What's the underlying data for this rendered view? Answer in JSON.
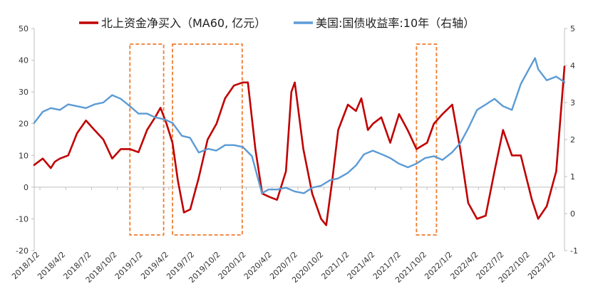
{
  "chart_data": {
    "type": "line",
    "title": "",
    "legend": {
      "placement": "top",
      "entries": [
        "北上资金净买入（MA60, 亿元）",
        "美国:国债收益率:10年（右轴）"
      ]
    },
    "colors": {
      "north": "#C00000",
      "us10y": "#5B9BD5",
      "highlight": "#ED7D31",
      "axis": "#BFBFBF"
    },
    "x_ticks": [
      "2018/1/2",
      "2018/4/2",
      "2018/7/2",
      "2018/10/2",
      "2019/1/2",
      "2019/4/2",
      "2019/7/2",
      "2019/10/2",
      "2020/1/2",
      "2020/4/2",
      "2020/7/2",
      "2020/10/2",
      "2021/1/2",
      "2021/4/2",
      "2021/7/2",
      "2021/10/2",
      "2022/1/2",
      "2022/4/2",
      "2022/7/2",
      "2022/10/2",
      "2023/1/2"
    ],
    "x_range": [
      "2018-01-02",
      "2023-02-01"
    ],
    "y_left": {
      "ylim": [
        -20,
        50
      ],
      "ticks": [
        "-20",
        "-10",
        "0",
        "10",
        "20",
        "30",
        "40",
        "50"
      ]
    },
    "y_right": {
      "ylim": [
        -1,
        5
      ],
      "ticks": [
        "-1",
        "0",
        "1",
        "2",
        "3",
        "4",
        "5"
      ]
    },
    "highlight_periods": [
      [
        "2018-12-03",
        "2019-03-31"
      ],
      [
        "2019-05-01",
        "2019-12-31"
      ],
      [
        "2021-09-01",
        "2021-11-10"
      ]
    ],
    "series": [
      {
        "name": "北上资金净买入（MA60, 亿元）",
        "axis": "left",
        "x": [
          "2018-01-02",
          "2018-02-01",
          "2018-03-01",
          "2018-03-15",
          "2018-04-02",
          "2018-05-01",
          "2018-06-01",
          "2018-07-02",
          "2018-08-01",
          "2018-09-01",
          "2018-10-02",
          "2018-11-01",
          "2018-12-03",
          "2019-01-02",
          "2019-02-01",
          "2019-03-01",
          "2019-03-20",
          "2019-04-10",
          "2019-05-01",
          "2019-05-20",
          "2019-06-10",
          "2019-07-02",
          "2019-08-01",
          "2019-09-01",
          "2019-10-02",
          "2019-11-01",
          "2019-12-02",
          "2020-01-02",
          "2020-01-20",
          "2020-02-15",
          "2020-03-10",
          "2020-04-02",
          "2020-05-01",
          "2020-06-01",
          "2020-06-20",
          "2020-07-02",
          "2020-08-01",
          "2020-09-01",
          "2020-10-02",
          "2020-10-20",
          "2020-11-10",
          "2020-12-01",
          "2021-01-04",
          "2021-02-01",
          "2021-02-20",
          "2021-03-15",
          "2021-04-02",
          "2021-05-01",
          "2021-06-01",
          "2021-07-02",
          "2021-08-01",
          "2021-09-01",
          "2021-10-08",
          "2021-11-01",
          "2021-12-01",
          "2022-01-04",
          "2022-02-01",
          "2022-03-01",
          "2022-04-01",
          "2022-05-01",
          "2022-06-01",
          "2022-07-01",
          "2022-08-01",
          "2022-09-01",
          "2022-10-10",
          "2022-11-01",
          "2022-12-01",
          "2023-01-03",
          "2023-02-01"
        ],
        "values": [
          7,
          9,
          6,
          8,
          9,
          10,
          17,
          21,
          18,
          15,
          9,
          12,
          12,
          11,
          18,
          22,
          25,
          20,
          14,
          2,
          -8,
          -7,
          3,
          15,
          20,
          28,
          32,
          33,
          33,
          12,
          -2,
          -3,
          -4,
          5,
          30,
          33,
          12,
          -2,
          -10,
          -12,
          2,
          18,
          26,
          24,
          28,
          18,
          20,
          22,
          14,
          23,
          18,
          12,
          14,
          20,
          23,
          26,
          12,
          -5,
          -10,
          -9,
          5,
          18,
          10,
          10,
          -4,
          -10,
          -6,
          5,
          38
        ]
      },
      {
        "name": "美国:国债收益率:10年（右轴）",
        "axis": "right",
        "x": [
          "2018-01-02",
          "2018-02-01",
          "2018-03-01",
          "2018-04-02",
          "2018-05-01",
          "2018-06-01",
          "2018-07-02",
          "2018-08-01",
          "2018-09-01",
          "2018-10-02",
          "2018-11-01",
          "2018-12-03",
          "2019-01-02",
          "2019-02-01",
          "2019-03-01",
          "2019-04-01",
          "2019-05-01",
          "2019-06-03",
          "2019-07-01",
          "2019-08-01",
          "2019-09-03",
          "2019-10-01",
          "2019-11-01",
          "2019-12-02",
          "2020-01-02",
          "2020-02-03",
          "2020-03-09",
          "2020-04-01",
          "2020-05-01",
          "2020-06-01",
          "2020-07-01",
          "2020-08-03",
          "2020-09-01",
          "2020-10-01",
          "2020-11-02",
          "2020-12-01",
          "2021-01-04",
          "2021-02-01",
          "2021-03-01",
          "2021-04-01",
          "2021-05-03",
          "2021-06-01",
          "2021-07-01",
          "2021-08-02",
          "2021-09-01",
          "2021-10-01",
          "2021-11-01",
          "2021-12-01",
          "2022-01-03",
          "2022-02-01",
          "2022-03-01",
          "2022-04-01",
          "2022-05-02",
          "2022-06-01",
          "2022-07-01",
          "2022-08-01",
          "2022-09-01",
          "2022-10-03",
          "2022-10-21",
          "2022-11-01",
          "2022-12-01",
          "2023-01-03",
          "2023-02-01"
        ],
        "values": [
          2.45,
          2.75,
          2.85,
          2.8,
          2.95,
          2.9,
          2.85,
          2.95,
          3.0,
          3.2,
          3.1,
          2.9,
          2.7,
          2.7,
          2.6,
          2.55,
          2.45,
          2.1,
          2.05,
          1.65,
          1.75,
          1.7,
          1.85,
          1.85,
          1.8,
          1.55,
          0.55,
          0.65,
          0.65,
          0.7,
          0.6,
          0.55,
          0.7,
          0.75,
          0.9,
          0.95,
          1.1,
          1.3,
          1.6,
          1.7,
          1.6,
          1.5,
          1.35,
          1.25,
          1.35,
          1.5,
          1.55,
          1.45,
          1.65,
          1.9,
          2.3,
          2.8,
          2.95,
          3.1,
          2.9,
          2.8,
          3.5,
          3.95,
          4.2,
          3.9,
          3.6,
          3.7,
          3.55
        ]
      }
    ]
  }
}
